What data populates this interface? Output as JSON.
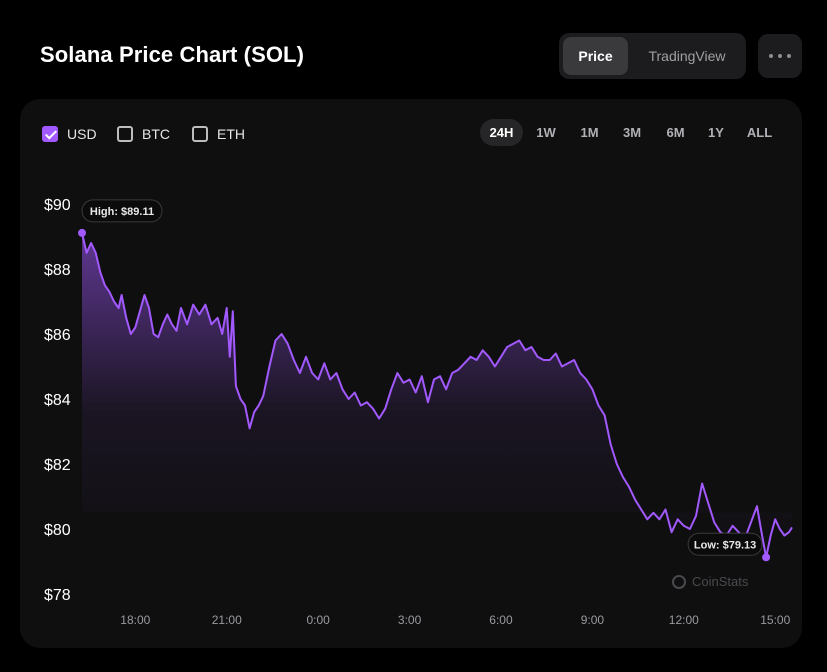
{
  "header": {
    "title": "Solana Price Chart (SOL)",
    "view_toggle": [
      {
        "label": "Price",
        "active": true
      },
      {
        "label": "TradingView",
        "active": false
      }
    ],
    "more_icon": "ellipsis-icon"
  },
  "currencies": [
    {
      "label": "USD",
      "checked": true
    },
    {
      "label": "BTC",
      "checked": false
    },
    {
      "label": "ETH",
      "checked": false
    }
  ],
  "ranges": [
    {
      "label": "24H",
      "active": true
    },
    {
      "label": "1W",
      "active": false
    },
    {
      "label": "1M",
      "active": false
    },
    {
      "label": "3M",
      "active": false
    },
    {
      "label": "6M",
      "active": false
    },
    {
      "label": "1Y",
      "active": false
    },
    {
      "label": "ALL",
      "active": false
    }
  ],
  "watermark": "CoinStats",
  "colors": {
    "accent": "#a259ff",
    "background": "#000000",
    "card": "#0f0f10"
  },
  "chart_data": {
    "type": "area",
    "y_tick_labels": [
      "$90",
      "$88",
      "$86",
      "$84",
      "$82",
      "$80",
      "$78"
    ],
    "y_ticks": [
      90,
      88,
      86,
      84,
      82,
      80,
      78
    ],
    "ylim": [
      78,
      90
    ],
    "x_tick_labels": [
      "18:00",
      "21:00",
      "0:00",
      "3:00",
      "6:00",
      "9:00",
      "12:00",
      "15:00"
    ],
    "x_ticks_hours": [
      18,
      21,
      24,
      27,
      30,
      33,
      36,
      39
    ],
    "xlim_hours": [
      16.25,
      39.55
    ],
    "high_label": "High: $89.11",
    "low_label": "Low: $79.13",
    "series": [
      {
        "values": [
          [
            16.25,
            89.11
          ],
          [
            16.4,
            88.5
          ],
          [
            16.55,
            88.8
          ],
          [
            16.7,
            88.5
          ],
          [
            16.85,
            87.9
          ],
          [
            17.0,
            87.5
          ],
          [
            17.15,
            87.3
          ],
          [
            17.3,
            87.0
          ],
          [
            17.45,
            86.8
          ],
          [
            17.55,
            87.2
          ],
          [
            17.7,
            86.5
          ],
          [
            17.85,
            86.0
          ],
          [
            18.0,
            86.2
          ],
          [
            18.15,
            86.7
          ],
          [
            18.3,
            87.2
          ],
          [
            18.45,
            86.8
          ],
          [
            18.6,
            86.0
          ],
          [
            18.75,
            85.9
          ],
          [
            18.9,
            86.3
          ],
          [
            19.05,
            86.6
          ],
          [
            19.2,
            86.3
          ],
          [
            19.35,
            86.1
          ],
          [
            19.5,
            86.8
          ],
          [
            19.7,
            86.3
          ],
          [
            19.9,
            86.9
          ],
          [
            20.1,
            86.6
          ],
          [
            20.3,
            86.9
          ],
          [
            20.5,
            86.3
          ],
          [
            20.7,
            86.5
          ],
          [
            20.85,
            86.0
          ],
          [
            21.0,
            86.8
          ],
          [
            21.1,
            85.3
          ],
          [
            21.2,
            86.7
          ],
          [
            21.3,
            84.4
          ],
          [
            21.45,
            84.0
          ],
          [
            21.6,
            83.8
          ],
          [
            21.75,
            83.1
          ],
          [
            21.9,
            83.6
          ],
          [
            22.05,
            83.8
          ],
          [
            22.2,
            84.1
          ],
          [
            22.4,
            85.0
          ],
          [
            22.6,
            85.8
          ],
          [
            22.8,
            86.0
          ],
          [
            23.0,
            85.7
          ],
          [
            23.2,
            85.2
          ],
          [
            23.4,
            84.8
          ],
          [
            23.6,
            85.3
          ],
          [
            23.8,
            84.8
          ],
          [
            24.0,
            84.6
          ],
          [
            24.2,
            85.1
          ],
          [
            24.4,
            84.6
          ],
          [
            24.6,
            84.8
          ],
          [
            24.8,
            84.3
          ],
          [
            25.0,
            84.0
          ],
          [
            25.2,
            84.2
          ],
          [
            25.4,
            83.8
          ],
          [
            25.6,
            83.9
          ],
          [
            25.8,
            83.7
          ],
          [
            26.0,
            83.4
          ],
          [
            26.2,
            83.7
          ],
          [
            26.4,
            84.3
          ],
          [
            26.6,
            84.8
          ],
          [
            26.8,
            84.5
          ],
          [
            27.0,
            84.6
          ],
          [
            27.2,
            84.2
          ],
          [
            27.4,
            84.7
          ],
          [
            27.6,
            83.9
          ],
          [
            27.8,
            84.6
          ],
          [
            28.0,
            84.7
          ],
          [
            28.2,
            84.3
          ],
          [
            28.4,
            84.8
          ],
          [
            28.6,
            84.9
          ],
          [
            28.8,
            85.1
          ],
          [
            29.0,
            85.3
          ],
          [
            29.2,
            85.2
          ],
          [
            29.4,
            85.5
          ],
          [
            29.6,
            85.3
          ],
          [
            29.8,
            85.0
          ],
          [
            30.0,
            85.3
          ],
          [
            30.2,
            85.6
          ],
          [
            30.4,
            85.7
          ],
          [
            30.6,
            85.8
          ],
          [
            30.8,
            85.5
          ],
          [
            31.0,
            85.6
          ],
          [
            31.2,
            85.3
          ],
          [
            31.4,
            85.2
          ],
          [
            31.6,
            85.2
          ],
          [
            31.8,
            85.4
          ],
          [
            32.0,
            85.0
          ],
          [
            32.2,
            85.1
          ],
          [
            32.4,
            85.2
          ],
          [
            32.6,
            84.8
          ],
          [
            32.8,
            84.6
          ],
          [
            33.0,
            84.3
          ],
          [
            33.2,
            83.8
          ],
          [
            33.4,
            83.5
          ],
          [
            33.6,
            82.6
          ],
          [
            33.8,
            82.0
          ],
          [
            34.0,
            81.6
          ],
          [
            34.2,
            81.3
          ],
          [
            34.4,
            80.9
          ],
          [
            34.6,
            80.6
          ],
          [
            34.8,
            80.3
          ],
          [
            35.0,
            80.5
          ],
          [
            35.2,
            80.3
          ],
          [
            35.4,
            80.6
          ],
          [
            35.6,
            79.9
          ],
          [
            35.8,
            80.3
          ],
          [
            36.0,
            80.1
          ],
          [
            36.2,
            80.0
          ],
          [
            36.4,
            80.4
          ],
          [
            36.6,
            81.4
          ],
          [
            36.8,
            80.8
          ],
          [
            37.0,
            80.2
          ],
          [
            37.2,
            79.9
          ],
          [
            37.4,
            79.8
          ],
          [
            37.6,
            80.1
          ],
          [
            37.8,
            79.9
          ],
          [
            38.0,
            79.7
          ],
          [
            38.2,
            80.2
          ],
          [
            38.4,
            80.7
          ],
          [
            38.55,
            79.9
          ],
          [
            38.7,
            79.13
          ],
          [
            38.85,
            79.8
          ],
          [
            39.0,
            80.3
          ],
          [
            39.15,
            80.0
          ],
          [
            39.3,
            79.8
          ],
          [
            39.45,
            79.9
          ],
          [
            39.55,
            80.05
          ]
        ]
      }
    ]
  }
}
